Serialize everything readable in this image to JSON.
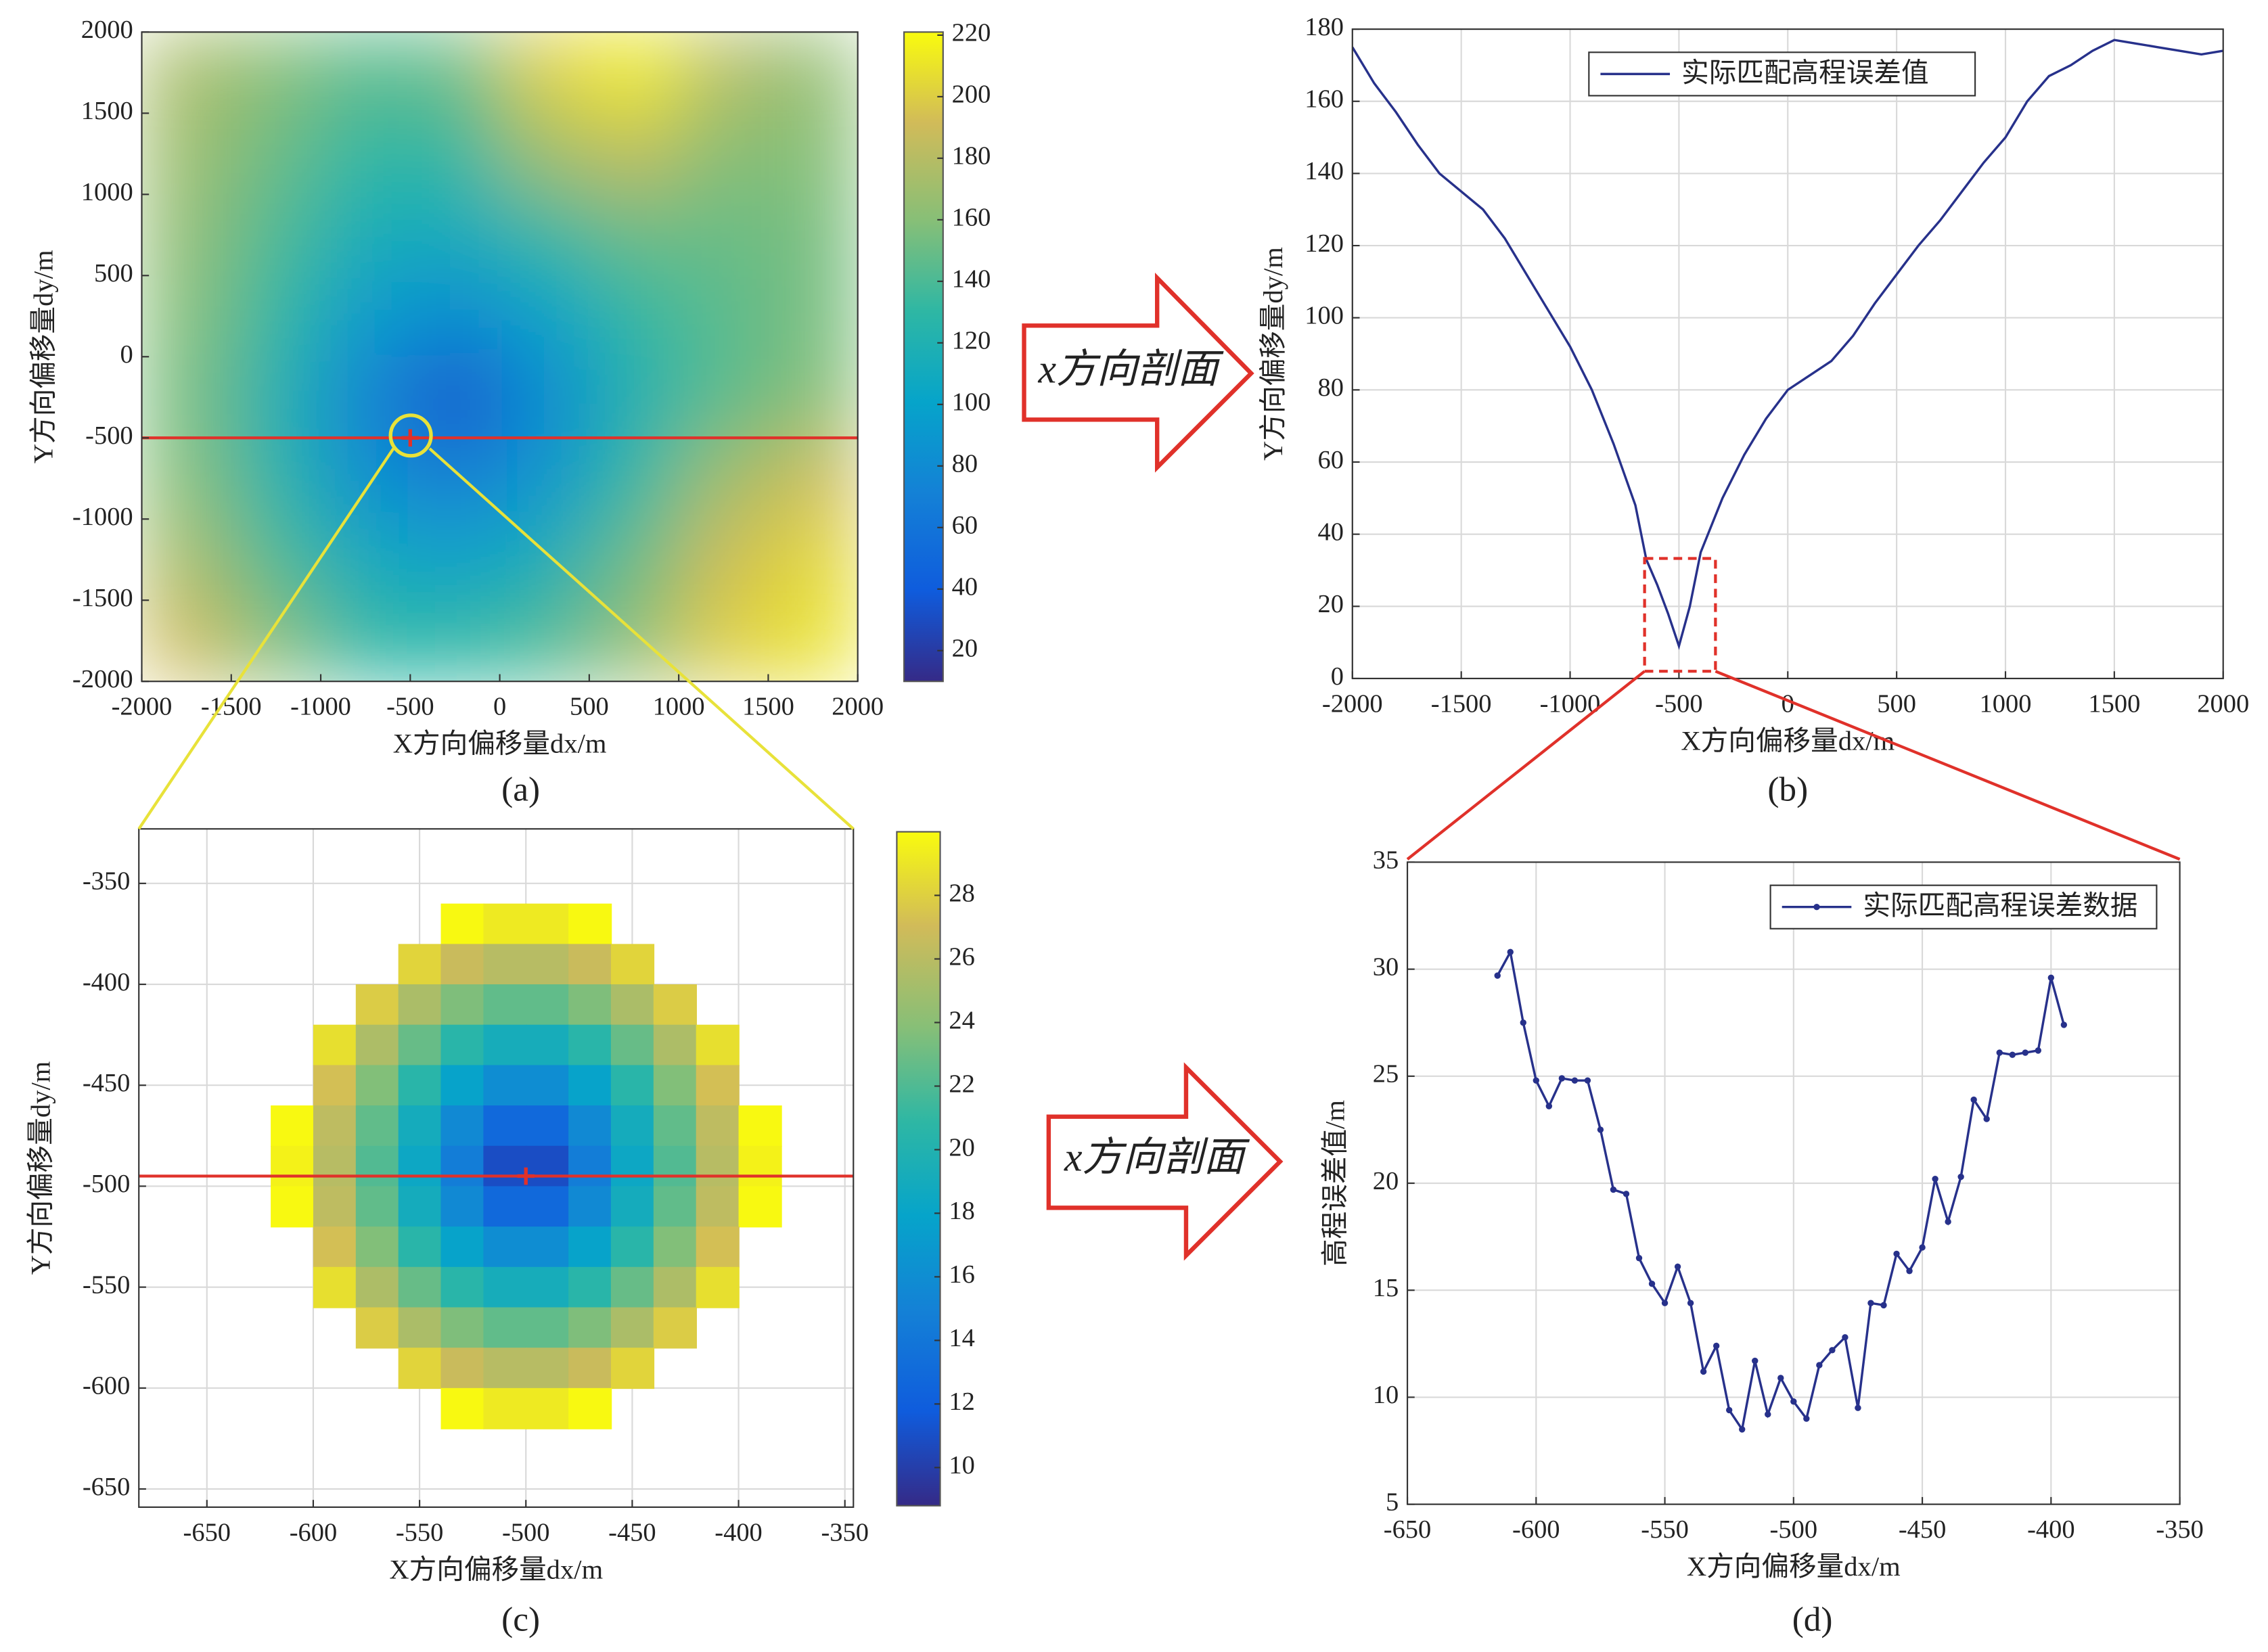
{
  "chart_data": [
    {
      "type": "heatmap",
      "caption": "(a)",
      "xlabel": "X方向偏移量dx/m",
      "ylabel": "Y方向偏移量dy/m",
      "xlim": [
        -2000,
        2000
      ],
      "ylim": [
        -2000,
        2000
      ],
      "xticks": [
        -2000,
        -1500,
        -1000,
        -500,
        0,
        500,
        1000,
        1500,
        2000
      ],
      "yticks": [
        -2000,
        -1500,
        -1000,
        -500,
        0,
        500,
        1000,
        1500,
        2000
      ],
      "x": [
        -1750,
        -1250,
        -750,
        -250,
        250,
        750,
        1250,
        1750
      ],
      "y": [
        1750,
        1250,
        750,
        250,
        -250,
        -750,
        -1250,
        -1750
      ],
      "z": [
        [
          175,
          160,
          145,
          150,
          200,
          215,
          180,
          165
        ],
        [
          170,
          150,
          130,
          130,
          170,
          185,
          160,
          160
        ],
        [
          165,
          140,
          115,
          110,
          130,
          150,
          150,
          155
        ],
        [
          160,
          130,
          95,
          80,
          100,
          130,
          145,
          155
        ],
        [
          155,
          120,
          75,
          35,
          80,
          120,
          145,
          160
        ],
        [
          160,
          125,
          85,
          70,
          90,
          130,
          170,
          190
        ],
        [
          175,
          140,
          110,
          100,
          115,
          150,
          190,
          205
        ],
        [
          190,
          160,
          130,
          130,
          140,
          165,
          200,
          210
        ]
      ],
      "shading": "interp",
      "colormap": "parula",
      "clim": [
        10,
        221
      ],
      "cticks": [
        20,
        40,
        60,
        80,
        100,
        120,
        140,
        160,
        180,
        200,
        220
      ],
      "profile_y": -500,
      "marker": [
        -500,
        -500
      ],
      "grid": false
    },
    {
      "type": "line",
      "caption": "(b)",
      "xlabel": "X方向偏移量dx/m",
      "ylabel": "Y方向偏移量dy/m",
      "xlim": [
        -2000,
        2000
      ],
      "ylim": [
        0,
        180
      ],
      "xticks": [
        -2000,
        -1500,
        -1000,
        -500,
        0,
        500,
        1000,
        1500,
        2000
      ],
      "yticks": [
        0,
        20,
        40,
        60,
        80,
        100,
        120,
        140,
        160,
        180
      ],
      "x": [
        -2000,
        -1900,
        -1800,
        -1700,
        -1600,
        -1500,
        -1400,
        -1300,
        -1200,
        -1100,
        -1000,
        -900,
        -800,
        -700,
        -650,
        -600,
        -550,
        -500,
        -450,
        -400,
        -300,
        -200,
        -100,
        0,
        100,
        200,
        300,
        400,
        500,
        600,
        700,
        800,
        900,
        1000,
        1100,
        1200,
        1300,
        1400,
        1500,
        1600,
        1700,
        1800,
        1900,
        2000
      ],
      "series": [
        {
          "name": "实际匹配高程误差值",
          "color": "#27318b",
          "values": [
            175,
            165,
            157,
            148,
            140,
            135,
            130,
            122,
            112,
            102,
            92,
            80,
            65,
            48,
            33,
            26,
            18,
            9,
            20,
            35,
            50,
            62,
            72,
            80,
            84,
            88,
            95,
            104,
            112,
            120,
            127,
            135,
            143,
            150,
            160,
            167,
            170,
            174,
            177,
            176,
            175,
            174,
            173,
            174
          ]
        }
      ],
      "legend": "north",
      "grid": true
    },
    {
      "type": "heatmap",
      "caption": "(c)",
      "xlabel": "X方向偏移量dx/m",
      "ylabel": "Y方向偏移量dy/m",
      "xlim": [
        -682,
        -346
      ],
      "ylim": [
        -659,
        -323
      ],
      "xticks": [
        -650,
        -600,
        -550,
        -500,
        -450,
        -400,
        -350
      ],
      "yticks": [
        -650,
        -600,
        -550,
        -500,
        -450,
        -400,
        -350
      ],
      "x": [
        -610,
        -590,
        -570,
        -550,
        -530,
        -510,
        -490,
        -470,
        -450,
        -430,
        -410,
        -390
      ],
      "y": [
        -370,
        -390,
        -410,
        -430,
        -450,
        -470,
        -490,
        -510,
        -530,
        -550,
        -570,
        -590,
        -610
      ],
      "z": [
        [
          null,
          null,
          null,
          null,
          29.9,
          29.2,
          29.2,
          29.9,
          null,
          null,
          null,
          null
        ],
        [
          null,
          null,
          null,
          28.2,
          26.7,
          25.9,
          25.9,
          26.7,
          28.2,
          null,
          null,
          null
        ],
        [
          null,
          null,
          27.8,
          25.4,
          23.6,
          22.6,
          22.6,
          23.6,
          25.4,
          27.8,
          null,
          null
        ],
        [
          null,
          28.7,
          25.5,
          22.8,
          20.5,
          19.2,
          19.2,
          20.5,
          22.8,
          25.5,
          28.7,
          null
        ],
        [
          null,
          27.2,
          23.7,
          20.5,
          17.8,
          16.0,
          16.0,
          17.8,
          20.5,
          23.7,
          27.2,
          null
        ],
        [
          29.9,
          26.2,
          22.6,
          19.0,
          15.6,
          12.9,
          12.9,
          15.6,
          19.0,
          22.6,
          26.2,
          29.9
        ],
        [
          29.6,
          25.9,
          22.1,
          18.4,
          14.6,
          10.9,
          10.9,
          14.6,
          18.4,
          22.1,
          25.9,
          29.6
        ],
        [
          29.9,
          26.2,
          22.6,
          19.0,
          15.6,
          12.9,
          12.9,
          15.6,
          19.0,
          22.6,
          26.2,
          29.9
        ],
        [
          null,
          27.2,
          23.7,
          20.5,
          17.8,
          16.0,
          16.0,
          17.8,
          20.5,
          23.7,
          27.2,
          null
        ],
        [
          null,
          28.7,
          25.5,
          22.8,
          20.5,
          19.2,
          19.2,
          20.5,
          22.8,
          25.5,
          28.7,
          null
        ],
        [
          null,
          null,
          27.8,
          25.4,
          23.6,
          22.6,
          22.6,
          23.6,
          25.4,
          27.8,
          null,
          null
        ],
        [
          null,
          null,
          null,
          28.2,
          26.7,
          25.9,
          25.9,
          26.7,
          28.2,
          null,
          null,
          null
        ],
        [
          null,
          null,
          null,
          null,
          29.9,
          29.2,
          29.2,
          29.9,
          null,
          null,
          null,
          null
        ]
      ],
      "shading": "flat",
      "colormap": "parula",
      "clim": [
        8.8,
        30
      ],
      "cticks": [
        10,
        12,
        14,
        16,
        18,
        20,
        22,
        24,
        26,
        28
      ],
      "profile_y": -495,
      "marker": [
        -500,
        -495
      ],
      "grid": true
    },
    {
      "type": "line",
      "caption": "(d)",
      "xlabel": "X方向偏移量dx/m",
      "ylabel": "高程误差值/m",
      "xlim": [
        -650,
        -350
      ],
      "ylim": [
        5,
        35
      ],
      "xticks": [
        -650,
        -600,
        -550,
        -500,
        -450,
        -400,
        -350
      ],
      "yticks": [
        5,
        10,
        15,
        20,
        25,
        30,
        35
      ],
      "x": [
        -615,
        -610,
        -605,
        -600,
        -595,
        -590,
        -585,
        -580,
        -575,
        -570,
        -565,
        -560,
        -555,
        -550,
        -545,
        -540,
        -535,
        -530,
        -525,
        -520,
        -515,
        -510,
        -505,
        -500,
        -495,
        -490,
        -485,
        -480,
        -475,
        -470,
        -465,
        -460,
        -455,
        -450,
        -445,
        -440,
        -435,
        -430,
        -425,
        -420,
        -415,
        -410,
        -405,
        -400,
        -395
      ],
      "series": [
        {
          "name": "实际匹配高程误差数据",
          "color": "#27318b",
          "values": [
            29.7,
            30.8,
            27.5,
            24.8,
            23.6,
            24.9,
            24.8,
            24.8,
            22.5,
            19.7,
            19.5,
            16.5,
            15.3,
            14.4,
            16.1,
            14.4,
            11.2,
            12.4,
            9.4,
            8.5,
            11.7,
            9.2,
            10.9,
            9.8,
            9.0,
            11.5,
            12.2,
            12.8,
            9.5,
            14.4,
            14.3,
            16.7,
            15.9,
            17.0,
            20.2,
            18.2,
            20.3,
            23.9,
            23.0,
            26.1,
            26.0,
            26.1,
            26.2,
            29.6,
            27.4
          ]
        }
      ],
      "marker": true,
      "legend": "northeast",
      "grid": true
    }
  ],
  "annotations": [
    "x方向剖面",
    "x方向剖面"
  ]
}
